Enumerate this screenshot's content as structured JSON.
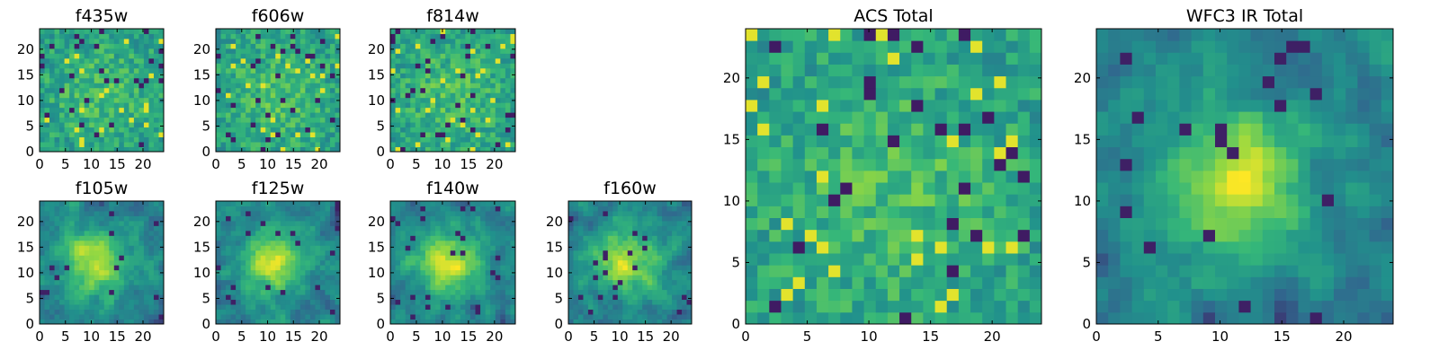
{
  "chart_data": [
    {
      "type": "heatmap",
      "title": "f435w",
      "pattern": "noise",
      "seed": 11,
      "xticks": [
        0,
        5,
        10,
        15,
        20
      ],
      "yticks": [
        0,
        5,
        10,
        15,
        20
      ],
      "xlim": [
        0,
        24
      ],
      "ylim": [
        0,
        24
      ]
    },
    {
      "type": "heatmap",
      "title": "f606w",
      "pattern": "noise",
      "seed": 23,
      "xticks": [
        0,
        5,
        10,
        15,
        20
      ],
      "yticks": [
        0,
        5,
        10,
        15,
        20
      ],
      "xlim": [
        0,
        24
      ],
      "ylim": [
        0,
        24
      ]
    },
    {
      "type": "heatmap",
      "title": "f814w",
      "pattern": "noise",
      "seed": 37,
      "xticks": [
        0,
        5,
        10,
        15,
        20
      ],
      "yticks": [
        0,
        5,
        10,
        15,
        20
      ],
      "xlim": [
        0,
        24
      ],
      "ylim": [
        0,
        24
      ]
    },
    {
      "type": "heatmap",
      "title": "f105w",
      "pattern": "blob",
      "seed": 41,
      "xticks": [
        0,
        5,
        10,
        15,
        20
      ],
      "yticks": [
        0,
        5,
        10,
        15,
        20
      ],
      "xlim": [
        0,
        24
      ],
      "ylim": [
        0,
        24
      ]
    },
    {
      "type": "heatmap",
      "title": "f125w",
      "pattern": "blob",
      "seed": 53,
      "xticks": [
        0,
        5,
        10,
        15,
        20
      ],
      "yticks": [
        0,
        5,
        10,
        15,
        20
      ],
      "xlim": [
        0,
        24
      ],
      "ylim": [
        0,
        24
      ]
    },
    {
      "type": "heatmap",
      "title": "f140w",
      "pattern": "blob",
      "seed": 67,
      "xticks": [
        0,
        5,
        10,
        15,
        20
      ],
      "yticks": [
        0,
        5,
        10,
        15,
        20
      ],
      "xlim": [
        0,
        24
      ],
      "ylim": [
        0,
        24
      ]
    },
    {
      "type": "heatmap",
      "title": "f160w",
      "pattern": "blob",
      "seed": 79,
      "xticks": [
        0,
        5,
        10,
        15,
        20
      ],
      "yticks": [
        0,
        5,
        10,
        15,
        20
      ],
      "xlim": [
        0,
        24
      ],
      "ylim": [
        0,
        24
      ]
    },
    {
      "type": "heatmap",
      "title": "ACS Total",
      "pattern": "noise",
      "seed": 97,
      "xticks": [
        0,
        5,
        10,
        15,
        20
      ],
      "yticks": [
        0,
        5,
        10,
        15,
        20
      ],
      "xlim": [
        0,
        24
      ],
      "ylim": [
        0,
        24
      ]
    },
    {
      "type": "heatmap",
      "title": "WFC3 IR Total",
      "pattern": "blob",
      "seed": 101,
      "xticks": [
        0,
        5,
        10,
        15,
        20
      ],
      "yticks": [
        0,
        5,
        10,
        15,
        20
      ],
      "xlim": [
        0,
        24
      ],
      "ylim": [
        0,
        24
      ]
    }
  ],
  "colormap": [
    "#440154",
    "#31688e",
    "#21918c",
    "#35b779",
    "#90d743",
    "#fde725"
  ]
}
